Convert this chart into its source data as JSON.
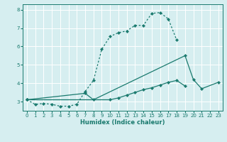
{
  "xlabel": "Humidex (Indice chaleur)",
  "bg_color": "#d6eef0",
  "grid_color": "#ffffff",
  "line_color": "#1a7a6e",
  "xlim": [
    -0.5,
    23.5
  ],
  "ylim": [
    2.5,
    8.3
  ],
  "yticks": [
    3,
    4,
    5,
    6,
    7,
    8
  ],
  "xticks": [
    0,
    1,
    2,
    3,
    4,
    5,
    6,
    7,
    8,
    9,
    10,
    11,
    12,
    13,
    14,
    15,
    16,
    17,
    18,
    19,
    20,
    21,
    22,
    23
  ],
  "lines": [
    {
      "x": [
        0,
        1,
        2,
        3,
        4,
        5,
        6,
        7,
        8,
        9,
        10,
        11,
        12,
        13,
        14,
        15,
        16,
        17,
        18
      ],
      "y": [
        3.1,
        2.85,
        2.9,
        2.85,
        2.75,
        2.75,
        2.85,
        3.55,
        4.15,
        5.85,
        6.55,
        6.75,
        6.85,
        7.15,
        7.15,
        7.8,
        7.85,
        7.5,
        6.35
      ],
      "style": "dotted"
    },
    {
      "x": [
        0,
        7,
        8,
        19,
        20,
        21,
        23
      ],
      "y": [
        3.1,
        3.45,
        3.1,
        5.5,
        4.2,
        3.7,
        4.05
      ],
      "style": "solid"
    },
    {
      "x": [
        0,
        10,
        11,
        12,
        13,
        14,
        15,
        16,
        17,
        18,
        19
      ],
      "y": [
        3.1,
        3.1,
        3.2,
        3.35,
        3.5,
        3.65,
        3.75,
        3.9,
        4.05,
        4.15,
        3.85
      ],
      "style": "solid"
    }
  ]
}
